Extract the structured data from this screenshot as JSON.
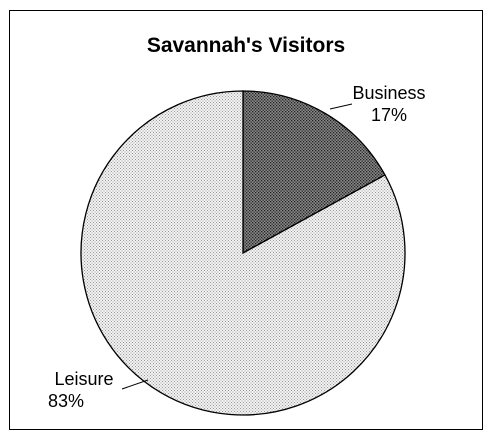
{
  "chart_data": {
    "type": "pie",
    "title": "Savannah's Visitors",
    "slices": [
      {
        "label": "Business",
        "value": 17,
        "value_label": "17%",
        "color": "#6b6b6b"
      },
      {
        "label": "Leisure",
        "value": 83,
        "value_label": "83%",
        "color": "#d9d9d9"
      }
    ],
    "start_angle_deg": 0,
    "direction": "clockwise",
    "fill_pattern": "dotted",
    "legend": "none"
  }
}
